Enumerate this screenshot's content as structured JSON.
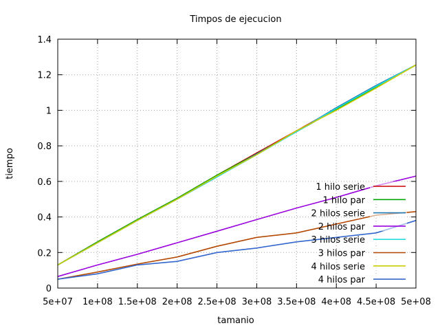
{
  "chart_data": {
    "type": "line",
    "title": "Timpos de ejecucion",
    "xlabel": "tamanio",
    "ylabel": "tiempo",
    "xlim": [
      50000000,
      500000000
    ],
    "ylim": [
      0,
      1.4
    ],
    "x_ticks": [
      50000000,
      100000000,
      150000000,
      200000000,
      250000000,
      300000000,
      350000000,
      400000000,
      450000000,
      500000000
    ],
    "x_tick_labels": [
      "5e+07",
      "1e+08",
      "1.5e+08",
      "2e+08",
      "2.5e+08",
      "3e+08",
      "3.5e+08",
      "4e+08",
      "4.5e+08",
      "5e+08"
    ],
    "y_ticks": [
      0,
      0.2,
      0.4,
      0.6,
      0.8,
      1,
      1.2,
      1.4
    ],
    "y_tick_labels": [
      "0",
      "0.2",
      "0.4",
      "0.6",
      "0.8",
      "1",
      "1.2",
      "1.4"
    ],
    "grid": true,
    "legend_position": "bottom-right",
    "x": [
      50000000,
      100000000,
      150000000,
      200000000,
      250000000,
      300000000,
      350000000,
      400000000,
      450000000,
      500000000
    ],
    "series": [
      {
        "name": "1 hilo serie",
        "color": "#cc0000",
        "values": [
          0.13,
          0.26,
          0.385,
          0.505,
          0.635,
          0.76,
          0.885,
          1.01,
          1.135,
          1.255
        ]
      },
      {
        "name": "1 hilo par",
        "color": "#00aa00",
        "values": [
          0.13,
          0.26,
          0.385,
          0.505,
          0.635,
          0.755,
          0.88,
          1.005,
          1.13,
          1.255
        ]
      },
      {
        "name": "2 hilos serie",
        "color": "#1f78b4",
        "values": [
          0.13,
          0.255,
          0.38,
          0.5,
          0.625,
          0.755,
          0.88,
          1.015,
          1.14,
          1.255
        ]
      },
      {
        "name": "2 hilos par",
        "color": "#9900dd",
        "values": [
          0.065,
          0.13,
          0.19,
          0.255,
          0.32,
          0.385,
          0.45,
          0.51,
          0.575,
          0.63
        ]
      },
      {
        "name": "3 hilos serie",
        "color": "#22dddd",
        "values": [
          0.13,
          0.255,
          0.38,
          0.5,
          0.625,
          0.75,
          0.88,
          1.01,
          1.135,
          1.255
        ]
      },
      {
        "name": "3 hilos par",
        "color": "#b34700",
        "values": [
          0.05,
          0.09,
          0.135,
          0.175,
          0.235,
          0.285,
          0.31,
          0.36,
          0.41,
          0.43
        ]
      },
      {
        "name": "4 hilos serie",
        "color": "#cccc00",
        "values": [
          0.13,
          0.255,
          0.38,
          0.5,
          0.63,
          0.75,
          0.885,
          1.0,
          1.125,
          1.255
        ]
      },
      {
        "name": "4 hilos par",
        "color": "#3366cc",
        "values": [
          0.05,
          0.08,
          0.13,
          0.15,
          0.2,
          0.225,
          0.26,
          0.285,
          0.31,
          0.38
        ]
      }
    ]
  }
}
